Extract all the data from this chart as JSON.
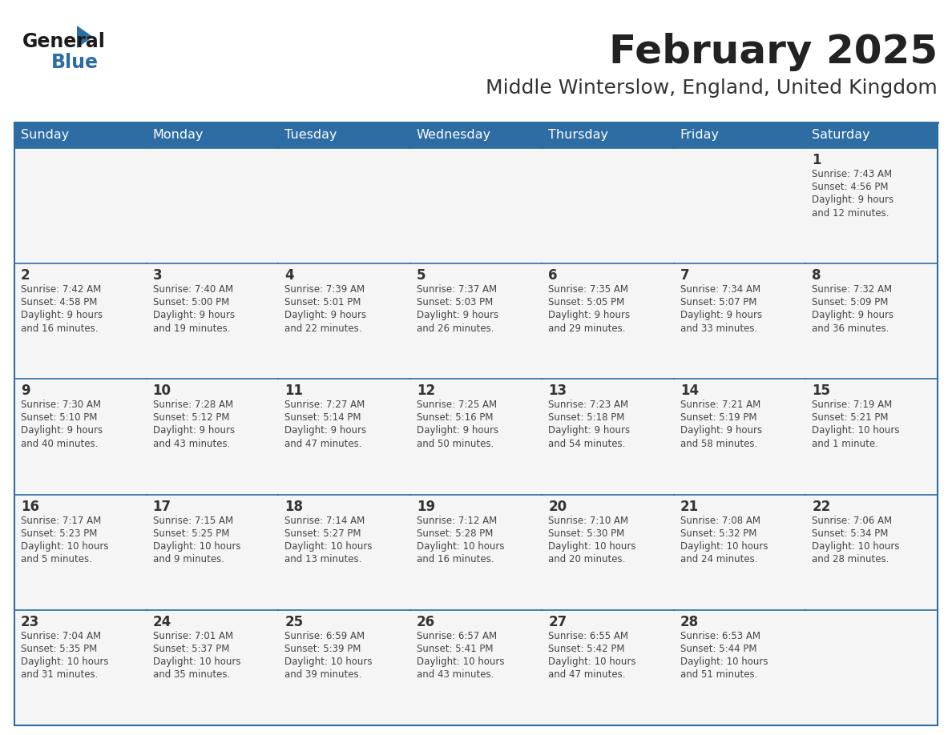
{
  "title": "February 2025",
  "subtitle": "Middle Winterslow, England, United Kingdom",
  "header_bg": "#2E6DA4",
  "header_text": "#FFFFFF",
  "cell_bg_odd": "#F2F2F2",
  "cell_bg_even": "#FFFFFF",
  "border_color": "#2E6DA4",
  "text_color": "#444444",
  "day_num_color": "#333333",
  "days_of_week": [
    "Sunday",
    "Monday",
    "Tuesday",
    "Wednesday",
    "Thursday",
    "Friday",
    "Saturday"
  ],
  "calendar_data": [
    [
      {
        "day": "",
        "sunrise": "",
        "sunset": "",
        "daylight": ""
      },
      {
        "day": "",
        "sunrise": "",
        "sunset": "",
        "daylight": ""
      },
      {
        "day": "",
        "sunrise": "",
        "sunset": "",
        "daylight": ""
      },
      {
        "day": "",
        "sunrise": "",
        "sunset": "",
        "daylight": ""
      },
      {
        "day": "",
        "sunrise": "",
        "sunset": "",
        "daylight": ""
      },
      {
        "day": "",
        "sunrise": "",
        "sunset": "",
        "daylight": ""
      },
      {
        "day": "1",
        "sunrise": "Sunrise: 7:43 AM",
        "sunset": "Sunset: 4:56 PM",
        "daylight": "Daylight: 9 hours\nand 12 minutes."
      }
    ],
    [
      {
        "day": "2",
        "sunrise": "Sunrise: 7:42 AM",
        "sunset": "Sunset: 4:58 PM",
        "daylight": "Daylight: 9 hours\nand 16 minutes."
      },
      {
        "day": "3",
        "sunrise": "Sunrise: 7:40 AM",
        "sunset": "Sunset: 5:00 PM",
        "daylight": "Daylight: 9 hours\nand 19 minutes."
      },
      {
        "day": "4",
        "sunrise": "Sunrise: 7:39 AM",
        "sunset": "Sunset: 5:01 PM",
        "daylight": "Daylight: 9 hours\nand 22 minutes."
      },
      {
        "day": "5",
        "sunrise": "Sunrise: 7:37 AM",
        "sunset": "Sunset: 5:03 PM",
        "daylight": "Daylight: 9 hours\nand 26 minutes."
      },
      {
        "day": "6",
        "sunrise": "Sunrise: 7:35 AM",
        "sunset": "Sunset: 5:05 PM",
        "daylight": "Daylight: 9 hours\nand 29 minutes."
      },
      {
        "day": "7",
        "sunrise": "Sunrise: 7:34 AM",
        "sunset": "Sunset: 5:07 PM",
        "daylight": "Daylight: 9 hours\nand 33 minutes."
      },
      {
        "day": "8",
        "sunrise": "Sunrise: 7:32 AM",
        "sunset": "Sunset: 5:09 PM",
        "daylight": "Daylight: 9 hours\nand 36 minutes."
      }
    ],
    [
      {
        "day": "9",
        "sunrise": "Sunrise: 7:30 AM",
        "sunset": "Sunset: 5:10 PM",
        "daylight": "Daylight: 9 hours\nand 40 minutes."
      },
      {
        "day": "10",
        "sunrise": "Sunrise: 7:28 AM",
        "sunset": "Sunset: 5:12 PM",
        "daylight": "Daylight: 9 hours\nand 43 minutes."
      },
      {
        "day": "11",
        "sunrise": "Sunrise: 7:27 AM",
        "sunset": "Sunset: 5:14 PM",
        "daylight": "Daylight: 9 hours\nand 47 minutes."
      },
      {
        "day": "12",
        "sunrise": "Sunrise: 7:25 AM",
        "sunset": "Sunset: 5:16 PM",
        "daylight": "Daylight: 9 hours\nand 50 minutes."
      },
      {
        "day": "13",
        "sunrise": "Sunrise: 7:23 AM",
        "sunset": "Sunset: 5:18 PM",
        "daylight": "Daylight: 9 hours\nand 54 minutes."
      },
      {
        "day": "14",
        "sunrise": "Sunrise: 7:21 AM",
        "sunset": "Sunset: 5:19 PM",
        "daylight": "Daylight: 9 hours\nand 58 minutes."
      },
      {
        "day": "15",
        "sunrise": "Sunrise: 7:19 AM",
        "sunset": "Sunset: 5:21 PM",
        "daylight": "Daylight: 10 hours\nand 1 minute."
      }
    ],
    [
      {
        "day": "16",
        "sunrise": "Sunrise: 7:17 AM",
        "sunset": "Sunset: 5:23 PM",
        "daylight": "Daylight: 10 hours\nand 5 minutes."
      },
      {
        "day": "17",
        "sunrise": "Sunrise: 7:15 AM",
        "sunset": "Sunset: 5:25 PM",
        "daylight": "Daylight: 10 hours\nand 9 minutes."
      },
      {
        "day": "18",
        "sunrise": "Sunrise: 7:14 AM",
        "sunset": "Sunset: 5:27 PM",
        "daylight": "Daylight: 10 hours\nand 13 minutes."
      },
      {
        "day": "19",
        "sunrise": "Sunrise: 7:12 AM",
        "sunset": "Sunset: 5:28 PM",
        "daylight": "Daylight: 10 hours\nand 16 minutes."
      },
      {
        "day": "20",
        "sunrise": "Sunrise: 7:10 AM",
        "sunset": "Sunset: 5:30 PM",
        "daylight": "Daylight: 10 hours\nand 20 minutes."
      },
      {
        "day": "21",
        "sunrise": "Sunrise: 7:08 AM",
        "sunset": "Sunset: 5:32 PM",
        "daylight": "Daylight: 10 hours\nand 24 minutes."
      },
      {
        "day": "22",
        "sunrise": "Sunrise: 7:06 AM",
        "sunset": "Sunset: 5:34 PM",
        "daylight": "Daylight: 10 hours\nand 28 minutes."
      }
    ],
    [
      {
        "day": "23",
        "sunrise": "Sunrise: 7:04 AM",
        "sunset": "Sunset: 5:35 PM",
        "daylight": "Daylight: 10 hours\nand 31 minutes."
      },
      {
        "day": "24",
        "sunrise": "Sunrise: 7:01 AM",
        "sunset": "Sunset: 5:37 PM",
        "daylight": "Daylight: 10 hours\nand 35 minutes."
      },
      {
        "day": "25",
        "sunrise": "Sunrise: 6:59 AM",
        "sunset": "Sunset: 5:39 PM",
        "daylight": "Daylight: 10 hours\nand 39 minutes."
      },
      {
        "day": "26",
        "sunrise": "Sunrise: 6:57 AM",
        "sunset": "Sunset: 5:41 PM",
        "daylight": "Daylight: 10 hours\nand 43 minutes."
      },
      {
        "day": "27",
        "sunrise": "Sunrise: 6:55 AM",
        "sunset": "Sunset: 5:42 PM",
        "daylight": "Daylight: 10 hours\nand 47 minutes."
      },
      {
        "day": "28",
        "sunrise": "Sunrise: 6:53 AM",
        "sunset": "Sunset: 5:44 PM",
        "daylight": "Daylight: 10 hours\nand 51 minutes."
      },
      {
        "day": "",
        "sunrise": "",
        "sunset": "",
        "daylight": ""
      }
    ]
  ]
}
